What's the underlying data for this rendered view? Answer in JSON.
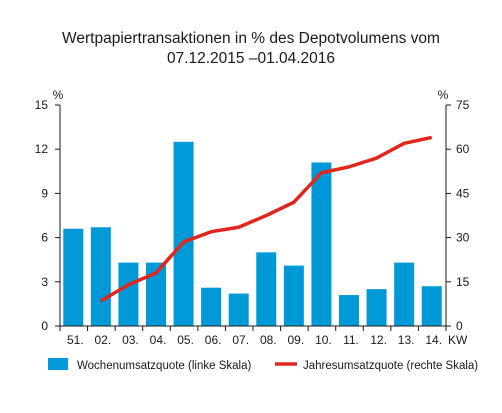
{
  "chart_data": {
    "type": "bar",
    "title_line1": "Wertpapiertransaktionen in % des Depotvolumens vom",
    "title_line2": "07.12.2015 –01.04.2016",
    "y_left_unit": "%",
    "y_right_unit": "%",
    "x_unit": "KW",
    "categories": [
      "51.",
      "02.",
      "03.",
      "04.",
      "05.",
      "06.",
      "07.",
      "08.",
      "09.",
      "10.",
      "11.",
      "12.",
      "13.",
      "14."
    ],
    "ylim_left": [
      0,
      15
    ],
    "ylim_right": [
      0,
      75
    ],
    "yticks_left": [
      0,
      3,
      6,
      9,
      12,
      15
    ],
    "yticks_right": [
      0,
      15,
      30,
      45,
      60,
      75
    ],
    "grid": false,
    "legend_position": "bottom",
    "series": [
      {
        "name": "Wochenumsatzquote (linke Skala)",
        "type": "bar",
        "axis": "left",
        "color": "#0099d8",
        "values": [
          6.6,
          6.7,
          4.3,
          4.3,
          12.5,
          2.6,
          2.2,
          5.0,
          4.1,
          11.1,
          2.1,
          2.5,
          4.3,
          2.7
        ]
      },
      {
        "name": "Jahresumsatzquote (rechte Skala)",
        "type": "line",
        "axis": "right",
        "color": "#e3261d",
        "values": [
          null,
          8.5,
          14.0,
          18.0,
          28.5,
          32.0,
          33.5,
          37.5,
          42.0,
          52.0,
          54.0,
          57.0,
          62.0,
          64.0
        ]
      }
    ]
  }
}
